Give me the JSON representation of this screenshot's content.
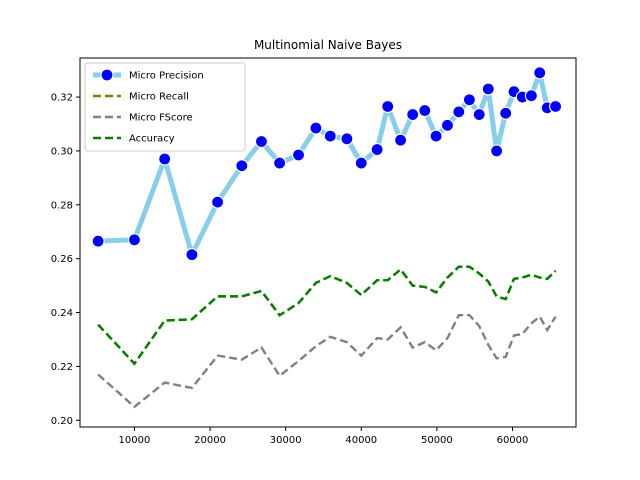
{
  "chart_data": {
    "type": "line",
    "title": "Multinomial Naive Bayes",
    "xlabel": "",
    "ylabel": "",
    "xlim": [
      2800,
      68400
    ],
    "ylim": [
      0.1975,
      0.3345
    ],
    "xticks": [
      10000,
      20000,
      30000,
      40000,
      50000,
      60000
    ],
    "yticks": [
      0.2,
      0.22,
      0.24,
      0.26,
      0.28,
      0.3,
      0.32
    ],
    "grid": false,
    "legend_position": "upper-left",
    "x": [
      5200,
      10000,
      14000,
      17600,
      21000,
      24200,
      26800,
      29200,
      31700,
      34000,
      35900,
      38100,
      40000,
      42100,
      43500,
      45200,
      46800,
      48400,
      49900,
      51400,
      52900,
      54300,
      55600,
      56800,
      57900,
      59100,
      60200,
      61300,
      62500,
      63600,
      64600,
      65700
    ],
    "series": [
      {
        "name": "Micro Precision",
        "color": "#87ceeb",
        "marker_color": "#0000ff",
        "style": "solid-marker",
        "values": [
          0.2665,
          0.267,
          0.297,
          0.2615,
          0.281,
          0.2945,
          0.3035,
          0.2955,
          0.2985,
          0.3085,
          0.3055,
          0.3045,
          0.2955,
          0.3005,
          0.3165,
          0.304,
          0.3135,
          0.315,
          0.3055,
          0.3095,
          0.3145,
          0.319,
          0.3135,
          0.323,
          0.3,
          0.314,
          0.322,
          0.32,
          0.3205,
          0.329,
          0.316,
          0.3165
        ]
      },
      {
        "name": "Micro Recall",
        "color": "#808000",
        "style": "dashed",
        "values": [
          0.2355,
          0.221,
          0.237,
          0.2375,
          0.246,
          0.246,
          0.248,
          0.239,
          0.2435,
          0.251,
          0.2535,
          0.251,
          0.2465,
          0.252,
          0.252,
          0.256,
          0.25,
          0.2495,
          0.2475,
          0.253,
          0.257,
          0.257,
          0.2545,
          0.2515,
          0.246,
          0.245,
          0.2525,
          0.253,
          0.254,
          0.253,
          0.2525,
          0.2555
        ]
      },
      {
        "name": "Micro FScore",
        "color": "#808080",
        "style": "dashed",
        "values": [
          0.217,
          0.205,
          0.214,
          0.212,
          0.224,
          0.2225,
          0.227,
          0.2165,
          0.222,
          0.2275,
          0.231,
          0.229,
          0.224,
          0.2305,
          0.23,
          0.2345,
          0.227,
          0.229,
          0.226,
          0.2305,
          0.239,
          0.239,
          0.235,
          0.228,
          0.223,
          0.2235,
          0.2315,
          0.232,
          0.236,
          0.2385,
          0.2335,
          0.2385
        ]
      },
      {
        "name": "Accuracy",
        "color": "#008000",
        "style": "dashed",
        "values": [
          0.2355,
          0.221,
          0.237,
          0.2375,
          0.246,
          0.246,
          0.248,
          0.239,
          0.2435,
          0.251,
          0.2535,
          0.251,
          0.2465,
          0.252,
          0.252,
          0.256,
          0.25,
          0.2495,
          0.2475,
          0.253,
          0.257,
          0.257,
          0.2545,
          0.2515,
          0.246,
          0.245,
          0.2525,
          0.253,
          0.254,
          0.253,
          0.2525,
          0.2555
        ]
      }
    ]
  }
}
